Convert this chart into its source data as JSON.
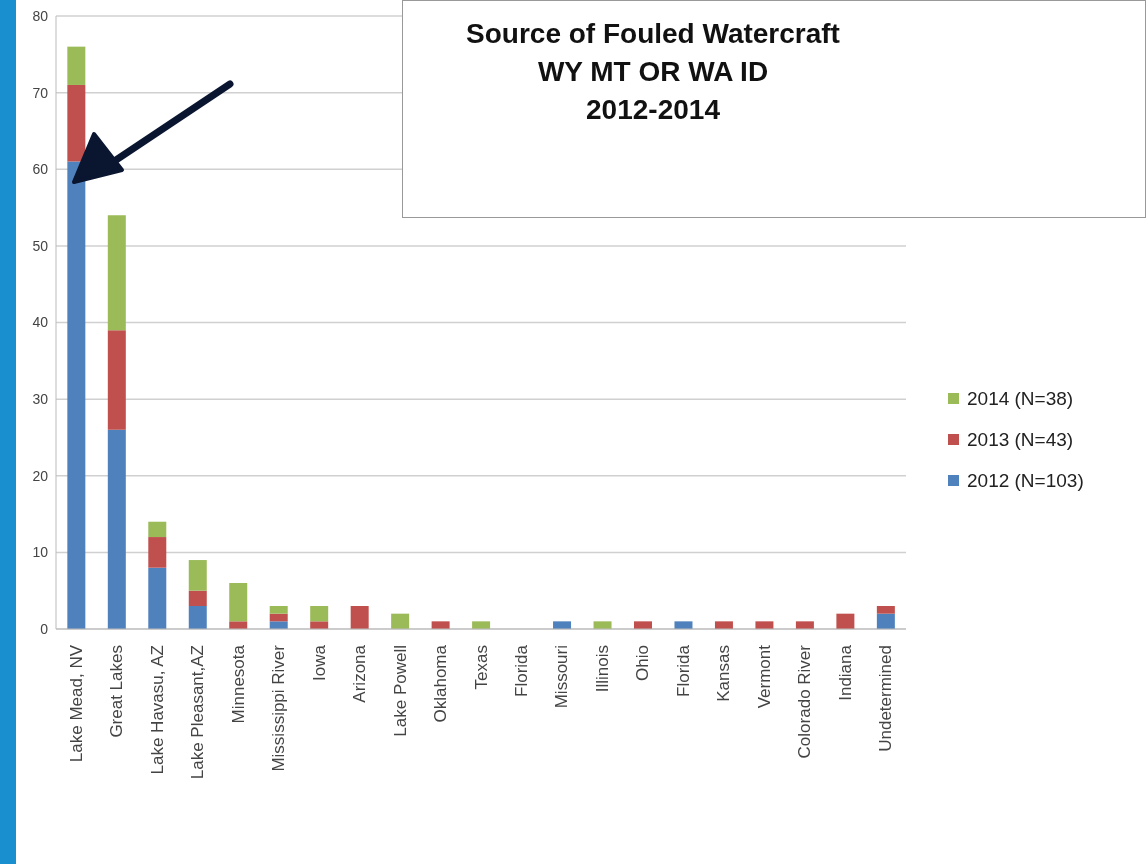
{
  "chart_data": {
    "type": "bar",
    "title": "Source of Fouled Watercraft\nWY MT OR WA ID\n2012-2014",
    "stacked": true,
    "categories": [
      "Lake Mead, NV",
      "Great Lakes",
      "Lake Havasu, AZ",
      "Lake Pleasant,AZ",
      "Minnesota",
      "Mississippi River",
      "Iowa",
      "Arizona",
      "Lake Powell",
      "Oklahoma",
      "Texas",
      "Florida",
      "Missouri",
      "Illinois",
      "Ohio",
      "Florida",
      "Kansas",
      "Vermont",
      "Colorado River",
      "Indiana",
      "Undetermined"
    ],
    "series": [
      {
        "name": "2012 (N=103)",
        "color": "#4f81bd",
        "values": [
          61,
          26,
          8,
          3,
          0,
          1,
          0,
          0,
          0,
          0,
          0,
          0,
          1,
          0,
          0,
          1,
          0,
          0,
          0,
          0,
          2
        ]
      },
      {
        "name": "2013 (N=43)",
        "color": "#c0504d",
        "values": [
          10,
          13,
          4,
          2,
          1,
          1,
          1,
          3,
          0,
          1,
          0,
          0,
          0,
          0,
          1,
          0,
          1,
          1,
          1,
          2,
          1
        ]
      },
      {
        "name": "2014 (N=38)",
        "color": "#9bbb59",
        "values": [
          5,
          15,
          2,
          4,
          5,
          1,
          2,
          0,
          2,
          0,
          1,
          0,
          0,
          1,
          0,
          0,
          0,
          0,
          0,
          0,
          0
        ]
      }
    ],
    "ylim": [
      0,
      80
    ],
    "yticks": [
      0,
      10,
      20,
      30,
      40,
      50,
      60,
      70,
      80
    ],
    "grid": "y",
    "legend": "right"
  }
}
